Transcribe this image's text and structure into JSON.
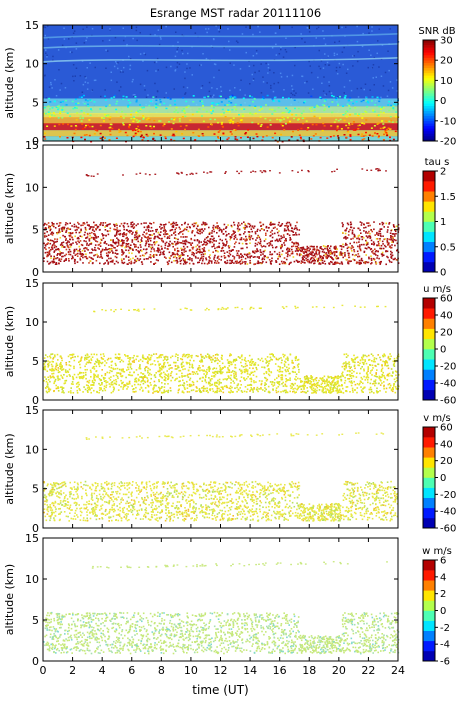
{
  "chart_data": [
    {
      "type": "heatmap",
      "title": "Esrange MST radar 20111106",
      "ylabel": "altitude (km)",
      "ylim": [
        0,
        15
      ],
      "yticks": [
        "0",
        "5",
        "10",
        "15"
      ],
      "colorbar": {
        "label": "SNR dB",
        "range": [
          -20,
          30
        ],
        "ticks": [
          "30",
          "20",
          "10",
          "0",
          "-10",
          "-20"
        ],
        "colormap": "jet"
      },
      "background": "#2a5ad6"
    },
    {
      "type": "heatmap",
      "ylabel": "altitude (km)",
      "ylim": [
        0,
        15
      ],
      "yticks": [
        "0",
        "5",
        "10",
        "15"
      ],
      "colorbar": {
        "label": "tau s",
        "range": [
          0,
          2
        ],
        "ticks": [
          "2",
          "1.5",
          "1",
          "0.5",
          "0"
        ],
        "colormap": "jet"
      },
      "dominant_color": "#a50f15"
    },
    {
      "type": "heatmap",
      "ylabel": "altitude (km)",
      "ylim": [
        0,
        15
      ],
      "yticks": [
        "0",
        "5",
        "10",
        "15"
      ],
      "colorbar": {
        "label": "u m/s",
        "range": [
          -60,
          60
        ],
        "ticks": [
          "60",
          "40",
          "20",
          "0",
          "-20",
          "-40",
          "-60"
        ],
        "colormap": "jet"
      },
      "dominant_color": "#e6e62a"
    },
    {
      "type": "heatmap",
      "ylabel": "altitude (km)",
      "ylim": [
        0,
        15
      ],
      "yticks": [
        "0",
        "5",
        "10",
        "15"
      ],
      "colorbar": {
        "label": "v m/s",
        "range": [
          -60,
          60
        ],
        "ticks": [
          "60",
          "40",
          "20",
          "0",
          "-20",
          "-40",
          "-60"
        ],
        "colormap": "jet"
      },
      "dominant_color": "#e8e845"
    },
    {
      "type": "heatmap",
      "ylabel": "altitude (km)",
      "xlabel": "time (UT)",
      "xlim": [
        0,
        24
      ],
      "xticks": [
        "0",
        "2",
        "4",
        "6",
        "8",
        "10",
        "12",
        "14",
        "16",
        "18",
        "20",
        "22",
        "24"
      ],
      "ylim": [
        0,
        15
      ],
      "yticks": [
        "0",
        "5",
        "10",
        "15"
      ],
      "colorbar": {
        "label": "w m/s",
        "range": [
          -6,
          6
        ],
        "ticks": [
          "6",
          "4",
          "2",
          "0",
          "-2",
          "-4",
          "-6"
        ],
        "colormap": "jet"
      },
      "dominant_color": "#c6e87a"
    }
  ]
}
